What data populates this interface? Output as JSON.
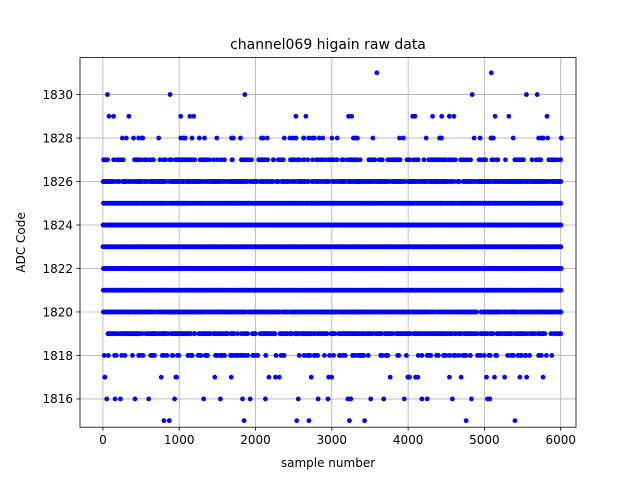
{
  "chart_data": {
    "type": "scatter",
    "title": "channel069 higain raw data",
    "xlabel": "sample number",
    "ylabel": "ADC Code",
    "xlim": [
      -300,
      6200
    ],
    "ylim": [
      1814.7,
      1831.7
    ],
    "xticks": [
      0,
      1000,
      2000,
      3000,
      4000,
      5000,
      6000
    ],
    "yticks": [
      1816,
      1818,
      1820,
      1822,
      1824,
      1826,
      1828,
      1830
    ],
    "grid": true,
    "marker_color": "#0000ff",
    "n_samples": 6000,
    "level_sample_fraction": {
      "1815": 0.002,
      "1816": 0.012,
      "1817": 0.055,
      "1818": 0.18,
      "1819": 0.44,
      "1820": 0.8,
      "1821": 0.97,
      "1822": 0.99,
      "1823": 0.99,
      "1824": 0.97,
      "1825": 0.88,
      "1826": 0.62,
      "1827": 0.28,
      "1828": 0.08,
      "1829": 0.012,
      "1830": 0.004,
      "1831": 0.0004
    },
    "sparse_points": [
      {
        "x": 800,
        "y": 1815
      },
      {
        "x": 870,
        "y": 1815
      },
      {
        "x": 1850,
        "y": 1815
      },
      {
        "x": 2540,
        "y": 1815
      },
      {
        "x": 2700,
        "y": 1815
      },
      {
        "x": 3230,
        "y": 1815
      },
      {
        "x": 3430,
        "y": 1815
      },
      {
        "x": 4760,
        "y": 1815
      },
      {
        "x": 5400,
        "y": 1815
      },
      {
        "x": 60,
        "y": 1830
      },
      {
        "x": 880,
        "y": 1830
      },
      {
        "x": 1860,
        "y": 1830
      },
      {
        "x": 4840,
        "y": 1830
      },
      {
        "x": 5550,
        "y": 1830
      },
      {
        "x": 5690,
        "y": 1830
      },
      {
        "x": 3590,
        "y": 1831
      },
      {
        "x": 5090,
        "y": 1831
      },
      {
        "x": 80,
        "y": 1829
      },
      {
        "x": 140,
        "y": 1829
      },
      {
        "x": 340,
        "y": 1829
      },
      {
        "x": 1020,
        "y": 1829
      },
      {
        "x": 1140,
        "y": 1829
      },
      {
        "x": 1190,
        "y": 1829
      },
      {
        "x": 2530,
        "y": 1829
      },
      {
        "x": 2660,
        "y": 1829
      },
      {
        "x": 3220,
        "y": 1829
      },
      {
        "x": 3260,
        "y": 1829
      },
      {
        "x": 4060,
        "y": 1829
      },
      {
        "x": 4090,
        "y": 1829
      },
      {
        "x": 4320,
        "y": 1829
      },
      {
        "x": 4440,
        "y": 1829
      },
      {
        "x": 4540,
        "y": 1829
      },
      {
        "x": 4600,
        "y": 1829
      },
      {
        "x": 5140,
        "y": 1829
      },
      {
        "x": 5320,
        "y": 1829
      },
      {
        "x": 5820,
        "y": 1829
      },
      {
        "x": 50,
        "y": 1816
      },
      {
        "x": 160,
        "y": 1816
      },
      {
        "x": 230,
        "y": 1816
      },
      {
        "x": 420,
        "y": 1816
      },
      {
        "x": 600,
        "y": 1816
      },
      {
        "x": 940,
        "y": 1816
      },
      {
        "x": 1320,
        "y": 1816
      },
      {
        "x": 1540,
        "y": 1816
      },
      {
        "x": 1830,
        "y": 1816
      },
      {
        "x": 1930,
        "y": 1816
      },
      {
        "x": 2130,
        "y": 1816
      },
      {
        "x": 2560,
        "y": 1816
      },
      {
        "x": 2820,
        "y": 1816
      },
      {
        "x": 2950,
        "y": 1816
      },
      {
        "x": 3210,
        "y": 1816
      },
      {
        "x": 3250,
        "y": 1816
      },
      {
        "x": 3510,
        "y": 1816
      },
      {
        "x": 3680,
        "y": 1816
      },
      {
        "x": 3950,
        "y": 1816
      },
      {
        "x": 4180,
        "y": 1816
      },
      {
        "x": 4250,
        "y": 1816
      },
      {
        "x": 4580,
        "y": 1816
      },
      {
        "x": 4830,
        "y": 1816
      },
      {
        "x": 5040,
        "y": 1816
      },
      {
        "x": 5070,
        "y": 1816
      }
    ]
  }
}
